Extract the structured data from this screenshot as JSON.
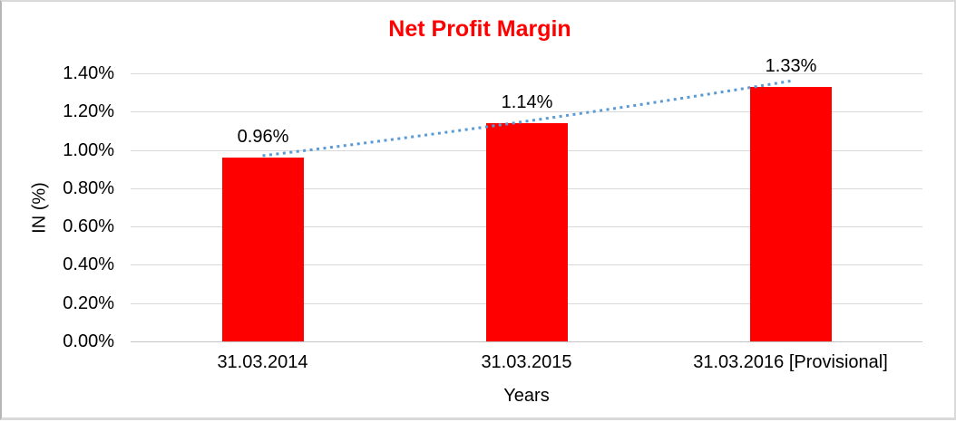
{
  "chart_data": {
    "type": "bar",
    "title": "Net Profit Margin",
    "title_color": "#ff0000",
    "xlabel": "Years",
    "ylabel": "IN (%)",
    "categories": [
      "31.03.2014",
      "31.03.2015",
      "31.03.2016 [Provisional]"
    ],
    "values": [
      0.96,
      1.14,
      1.33
    ],
    "data_labels": [
      "0.96%",
      "1.14%",
      "1.33%"
    ],
    "ylim": [
      0,
      1.4
    ],
    "ytick_step": 0.2,
    "ytick_labels": [
      "0.00%",
      "0.20%",
      "0.40%",
      "0.60%",
      "0.80%",
      "1.00%",
      "1.20%",
      "1.40%"
    ],
    "grid": true,
    "legend": "none",
    "bar_color": "#ff0000",
    "gridline_color": "#d9d9d9",
    "text_color": "#000000",
    "trendline": {
      "style": "dotted",
      "color": "#5b9bd5",
      "values": [
        0.97,
        1.15,
        1.36
      ]
    }
  }
}
